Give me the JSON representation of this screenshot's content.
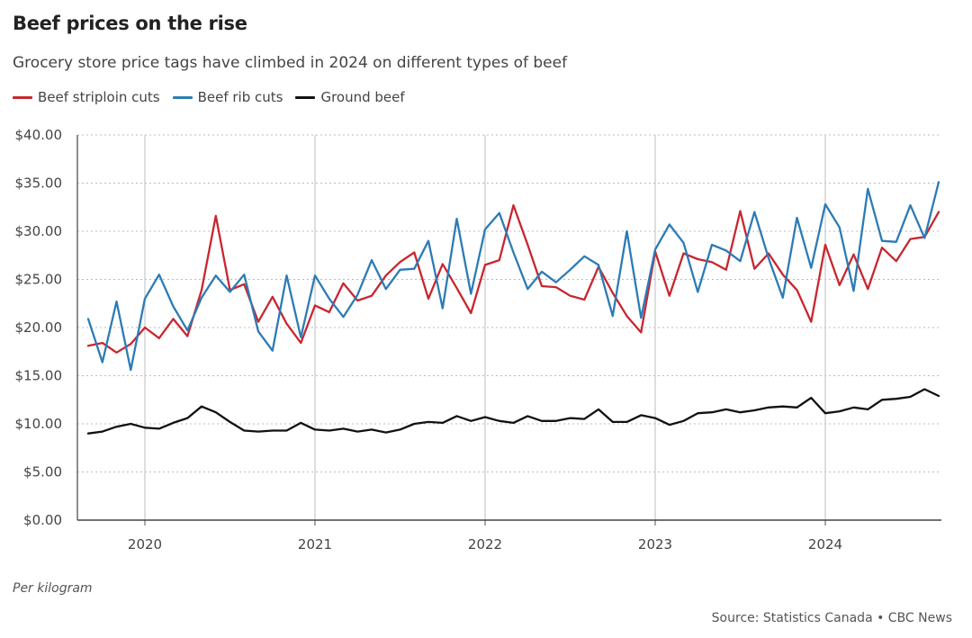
{
  "header": {
    "title": "Beef prices on the rise",
    "subtitle": "Grocery store price tags have climbed in 2024 on different types of beef"
  },
  "footer": {
    "note": "Per kilogram",
    "source": "Source: Statistics Canada • CBC News"
  },
  "colors": {
    "striploin": "#c8262f",
    "rib": "#2c7bb6",
    "ground": "#111111",
    "grid": "#b8bcc2"
  },
  "chart_data": {
    "type": "line",
    "title": "Beef prices on the rise",
    "subtitle": "Grocery store price tags have climbed in 2024 on different types of beef",
    "xlabel": "",
    "ylabel": "",
    "x_start": "2019-09",
    "x": [
      "2019-09",
      "2019-10",
      "2019-11",
      "2019-12",
      "2020-01",
      "2020-02",
      "2020-03",
      "2020-04",
      "2020-05",
      "2020-06",
      "2020-07",
      "2020-08",
      "2020-09",
      "2020-10",
      "2020-11",
      "2020-12",
      "2021-01",
      "2021-02",
      "2021-03",
      "2021-04",
      "2021-05",
      "2021-06",
      "2021-07",
      "2021-08",
      "2021-09",
      "2021-10",
      "2021-11",
      "2021-12",
      "2022-01",
      "2022-02",
      "2022-03",
      "2022-04",
      "2022-05",
      "2022-06",
      "2022-07",
      "2022-08",
      "2022-09",
      "2022-10",
      "2022-11",
      "2022-12",
      "2023-01",
      "2023-02",
      "2023-03",
      "2023-04",
      "2023-05",
      "2023-06",
      "2023-07",
      "2023-08",
      "2023-09",
      "2023-10",
      "2023-11",
      "2023-12",
      "2024-01",
      "2024-02",
      "2024-03",
      "2024-04",
      "2024-05",
      "2024-06",
      "2024-07",
      "2024-08",
      "2024-09"
    ],
    "ylim": [
      0,
      40
    ],
    "y_ticks": [
      "$0.00",
      "$5.00",
      "$10.00",
      "$15.00",
      "$20.00",
      "$25.00",
      "$30.00",
      "$35.00",
      "$40.00"
    ],
    "x_ticks": [
      "2020",
      "2021",
      "2022",
      "2023",
      "2024"
    ],
    "grid": true,
    "legend_position": "top-left",
    "series": [
      {
        "name": "Beef striploin cuts",
        "color": "#c8262f",
        "values": [
          18.1,
          18.4,
          17.4,
          18.3,
          20.0,
          18.9,
          20.9,
          19.1,
          23.9,
          31.6,
          23.9,
          24.5,
          20.6,
          23.2,
          20.4,
          18.4,
          22.3,
          21.6,
          24.6,
          22.8,
          23.3,
          25.4,
          26.8,
          27.8,
          23.0,
          26.6,
          24.1,
          21.5,
          26.5,
          27.0,
          32.7,
          28.6,
          24.3,
          24.2,
          23.3,
          22.9,
          26.3,
          23.6,
          21.2,
          19.5,
          27.9,
          23.3,
          27.7,
          27.1,
          26.8,
          26.0,
          32.1,
          26.1,
          27.7,
          25.5,
          23.9,
          20.6,
          28.6,
          24.4,
          27.6,
          24.0,
          28.3,
          26.9,
          29.2,
          29.4,
          32.0
        ]
      },
      {
        "name": "Beef rib cuts",
        "color": "#2c7bb6",
        "values": [
          20.9,
          16.4,
          22.7,
          15.6,
          23.0,
          25.5,
          22.2,
          19.7,
          23.1,
          25.4,
          23.7,
          25.5,
          19.6,
          17.6,
          25.4,
          19.0,
          25.4,
          23.0,
          21.1,
          23.4,
          27.0,
          24.0,
          26.0,
          26.1,
          29.0,
          22.0,
          31.3,
          23.5,
          30.2,
          31.9,
          27.8,
          24.0,
          25.8,
          24.7,
          26.0,
          27.4,
          26.5,
          21.2,
          30.0,
          21.0,
          28.1,
          30.7,
          28.8,
          23.7,
          28.6,
          28.0,
          26.9,
          32.0,
          27.2,
          23.1,
          31.4,
          26.2,
          32.8,
          30.4,
          23.8,
          34.4,
          29.0,
          28.9,
          32.7,
          29.3,
          35.1
        ]
      },
      {
        "name": "Ground beef",
        "color": "#111111",
        "values": [
          9.0,
          9.2,
          9.7,
          10.0,
          9.6,
          9.5,
          10.1,
          10.6,
          11.8,
          11.2,
          10.2,
          9.3,
          9.2,
          9.3,
          9.3,
          10.1,
          9.4,
          9.3,
          9.5,
          9.2,
          9.4,
          9.1,
          9.4,
          10.0,
          10.2,
          10.1,
          10.8,
          10.3,
          10.7,
          10.3,
          10.1,
          10.8,
          10.3,
          10.3,
          10.6,
          10.5,
          11.5,
          10.2,
          10.2,
          10.9,
          10.6,
          9.9,
          10.3,
          11.1,
          11.2,
          11.5,
          11.2,
          11.4,
          11.7,
          11.8,
          11.7,
          12.7,
          11.1,
          11.3,
          11.7,
          11.5,
          12.5,
          12.6,
          12.8,
          13.6,
          12.9
        ]
      }
    ]
  }
}
